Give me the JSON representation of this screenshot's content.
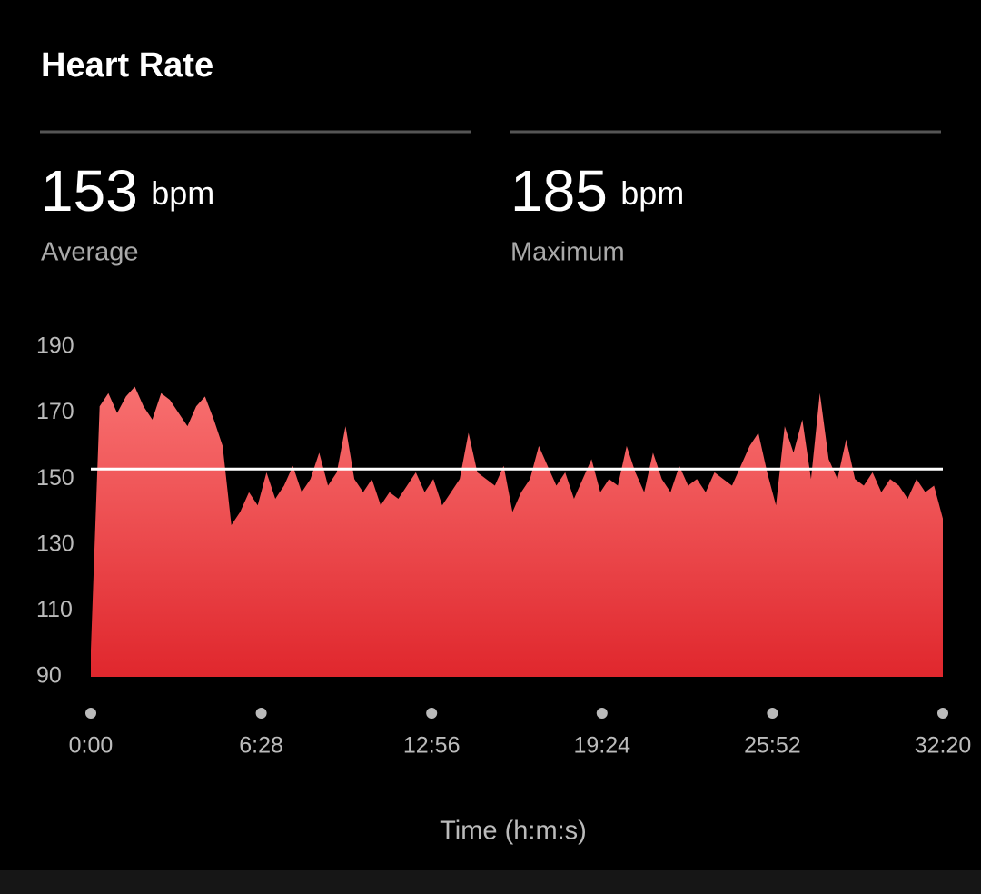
{
  "header": {
    "title": "Heart Rate"
  },
  "stats": [
    {
      "value": 153,
      "unit": "bpm",
      "label": "Average"
    },
    {
      "value": 185,
      "unit": "bpm",
      "label": "Maximum"
    }
  ],
  "chart_data": {
    "type": "area",
    "x_label": "Time (h:m:s)",
    "color": "#e8393c",
    "x": [
      0,
      20,
      40,
      60,
      80,
      100,
      120,
      140,
      160,
      180,
      200,
      220,
      240,
      260,
      280,
      300,
      320,
      340,
      360,
      380,
      400,
      420,
      440,
      460,
      480,
      500,
      520,
      540,
      560,
      580,
      600,
      620,
      640,
      660,
      680,
      700,
      720,
      740,
      760,
      780,
      800,
      820,
      840,
      860,
      880,
      900,
      920,
      940,
      960,
      980,
      1000,
      1020,
      1040,
      1060,
      1080,
      1100,
      1120,
      1140,
      1160,
      1180,
      1200,
      1220,
      1240,
      1260,
      1280,
      1300,
      1320,
      1340,
      1360,
      1380,
      1400,
      1420,
      1440,
      1460,
      1480,
      1500,
      1520,
      1540,
      1560,
      1580,
      1600,
      1620,
      1640,
      1660,
      1680,
      1700,
      1720,
      1740,
      1760,
      1780,
      1800,
      1820,
      1840,
      1860,
      1880,
      1900,
      1920,
      1940
    ],
    "values": [
      98,
      172,
      176,
      170,
      175,
      178,
      172,
      168,
      176,
      174,
      170,
      166,
      172,
      175,
      168,
      160,
      136,
      140,
      146,
      142,
      152,
      144,
      148,
      154,
      146,
      150,
      158,
      148,
      152,
      166,
      150,
      146,
      150,
      142,
      146,
      144,
      148,
      152,
      146,
      150,
      142,
      146,
      150,
      164,
      152,
      150,
      148,
      154,
      140,
      146,
      150,
      160,
      154,
      148,
      152,
      144,
      150,
      156,
      146,
      150,
      148,
      160,
      152,
      146,
      158,
      150,
      146,
      154,
      148,
      150,
      146,
      152,
      150,
      148,
      154,
      160,
      164,
      152,
      142,
      166,
      158,
      168,
      150,
      176,
      156,
      150,
      162,
      150,
      148,
      152,
      146,
      150,
      148,
      144,
      150,
      146,
      148,
      138
    ],
    "xlim": [
      0,
      1940
    ],
    "xticks": [
      {
        "value": 0,
        "label": "0:00"
      },
      {
        "value": 388,
        "label": "6:28"
      },
      {
        "value": 776,
        "label": "12:56"
      },
      {
        "value": 1164,
        "label": "19:24"
      },
      {
        "value": 1552,
        "label": "25:52"
      },
      {
        "value": 1940,
        "label": "32:20"
      }
    ],
    "ylim": [
      90,
      190
    ],
    "yticks": [
      90,
      110,
      130,
      150,
      170,
      190
    ]
  }
}
